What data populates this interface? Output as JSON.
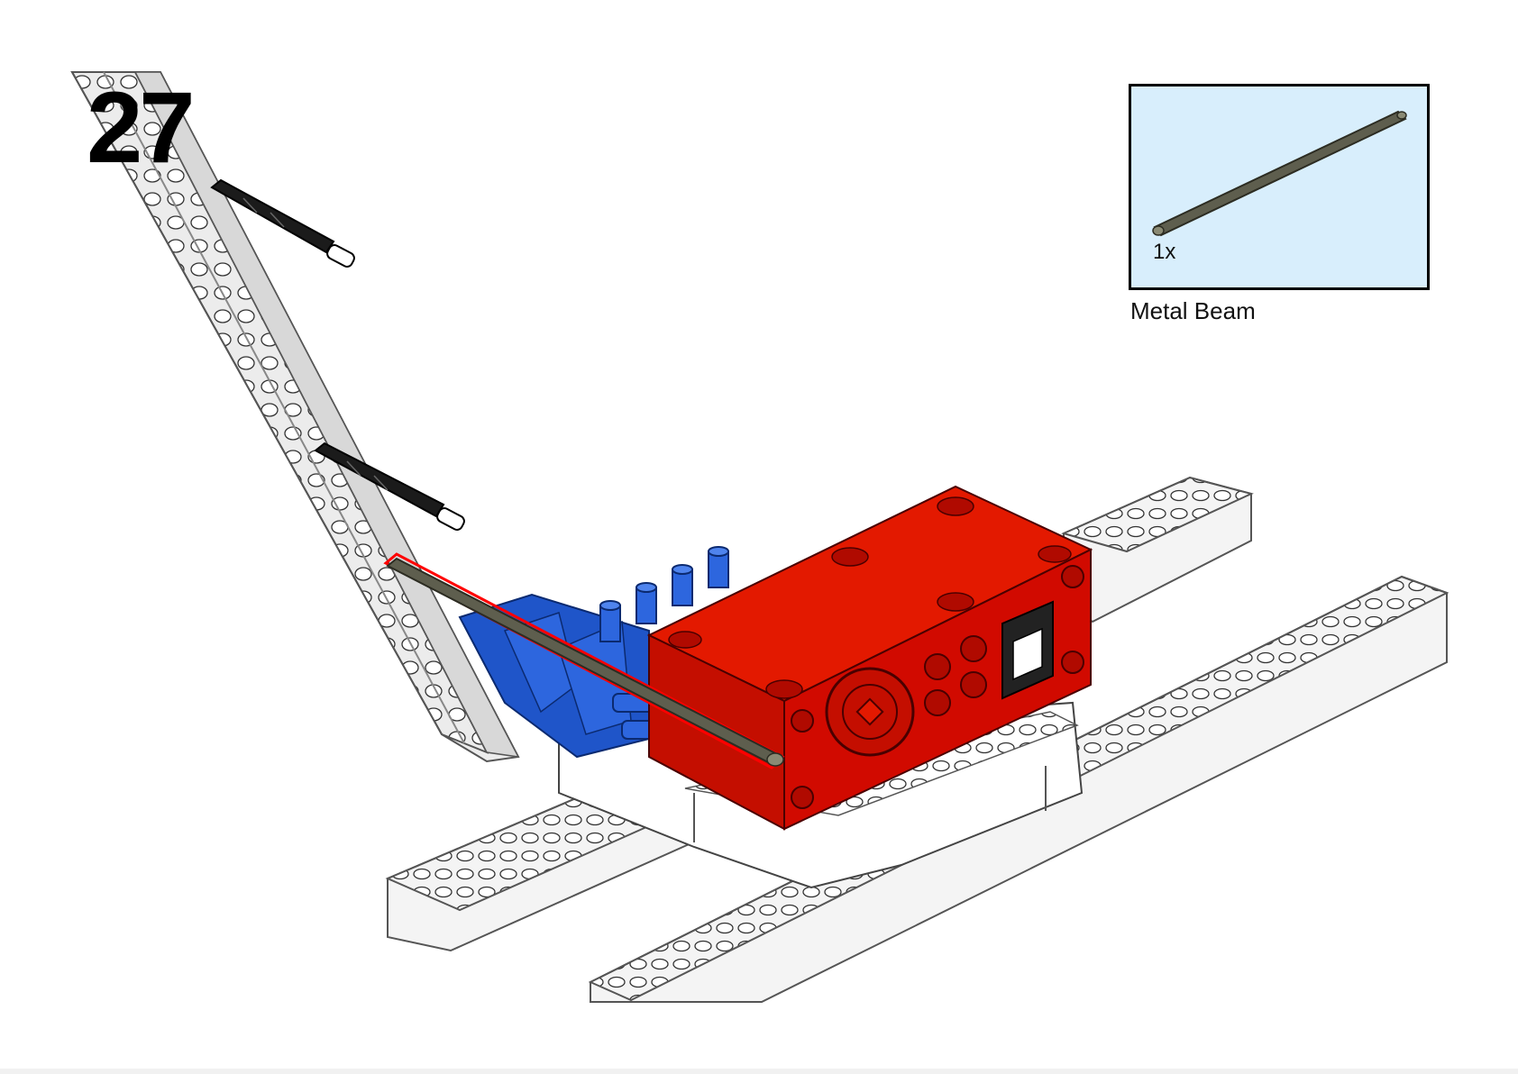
{
  "step": {
    "number": "27"
  },
  "parts_list": {
    "items": [
      {
        "quantity": "1x",
        "name": "Metal Beam",
        "icon": "metal-beam-icon"
      }
    ]
  },
  "colors": {
    "parts_box_background": "#d8eefc",
    "motor_red": "#d10a00",
    "connector_blue": "#1f55c9",
    "beam_white": "#f4f4f4",
    "metal_beam": "#5e5e4e",
    "pin_black": "#1b1b1b"
  }
}
